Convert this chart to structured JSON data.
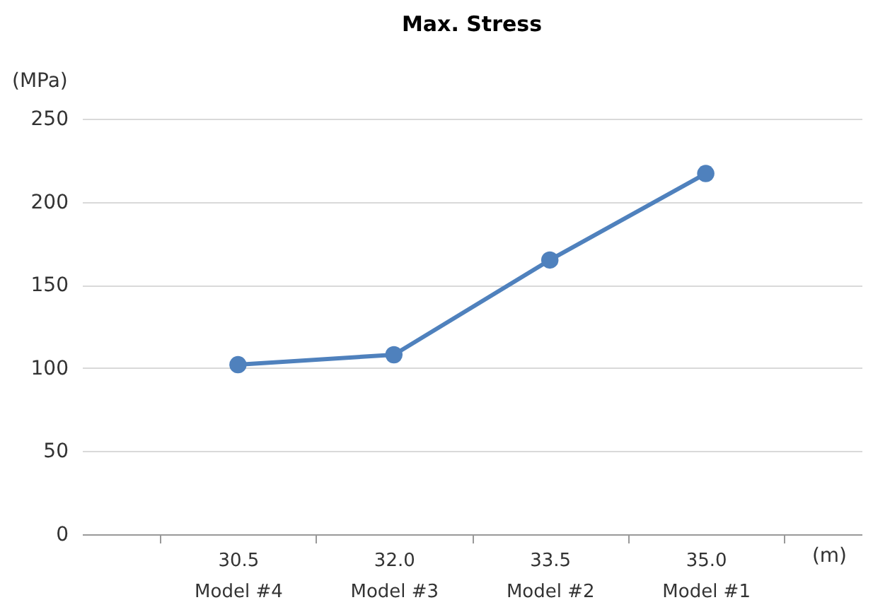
{
  "chart_data": {
    "type": "line",
    "title": "Max. Stress",
    "xlabel": "(m)",
    "ylabel": "(MPa)",
    "categories": [
      "30.5\nModel #4",
      "32.0\nModel #3",
      "33.5\nModel #2",
      "35.0\nModel #1"
    ],
    "series": [
      {
        "color": "#4f81bd",
        "values": [
          102,
          108,
          165,
          217
        ]
      }
    ],
    "ylim": [
      0,
      250
    ],
    "yticks": [
      0,
      50,
      100,
      150,
      200,
      250
    ],
    "grid": "y",
    "marker": "circle",
    "line_style": "solid"
  }
}
